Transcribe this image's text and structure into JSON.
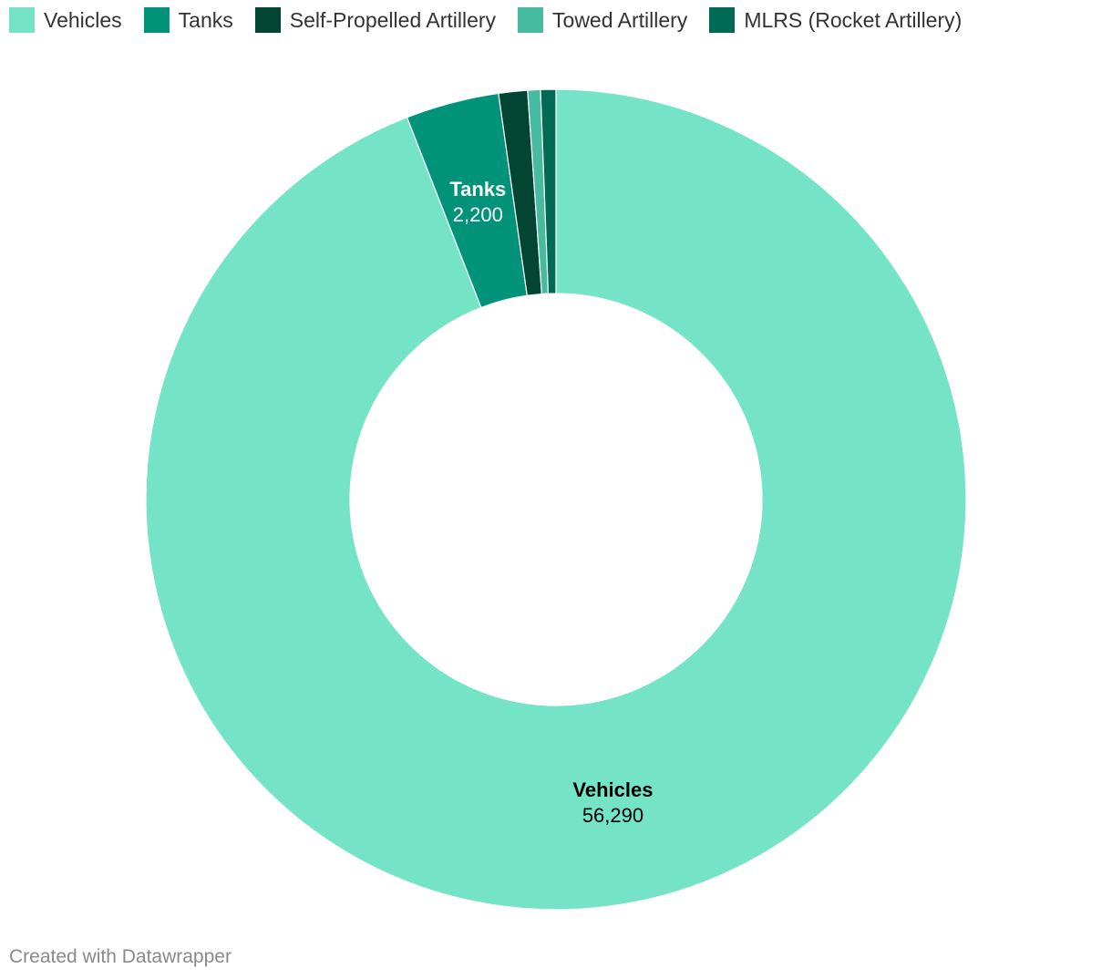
{
  "chart_data": {
    "type": "pie",
    "donut": true,
    "slices": [
      {
        "label": "Vehicles",
        "value": 56290,
        "value_label": "56,290",
        "color": "#74e3c6",
        "label_color": "#000000",
        "show_label": true
      },
      {
        "label": "Tanks",
        "value": 2200,
        "value_label": "2,200",
        "color": "#00937a",
        "label_color": "#ffffff",
        "show_label": true
      },
      {
        "label": "Self-Propelled Artillery",
        "value": 680,
        "value_label": "",
        "color": "#024533",
        "show_label": false
      },
      {
        "label": "Towed Artillery",
        "value": 300,
        "value_label": "",
        "color": "#46bb9f",
        "show_label": false
      },
      {
        "label": "MLRS (Rocket Artillery)",
        "value": 360,
        "value_label": "",
        "color": "#006b55",
        "show_label": false
      }
    ],
    "legend_position": "top-left"
  },
  "footer": {
    "credit": "Created with Datawrapper"
  }
}
